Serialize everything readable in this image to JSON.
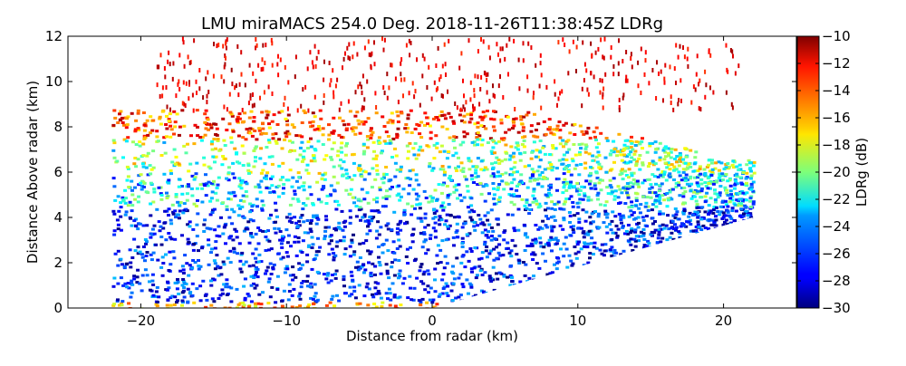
{
  "chart_data": {
    "type": "heatmap",
    "title": "LMU miraMACS 254.0 Deg. 2018-11-26T11:38:45Z  LDRg",
    "xlabel": "Distance from radar (km)",
    "ylabel": "Distance Above radar  (km)",
    "colorbar_label": "LDRg (dB)",
    "xlim": [
      -25,
      25
    ],
    "ylim": [
      0,
      12
    ],
    "x_ticks": [
      -20,
      -10,
      0,
      10,
      20
    ],
    "x_tick_labels": [
      "−20",
      "−10",
      "0",
      "10",
      "20"
    ],
    "y_ticks": [
      0,
      2,
      4,
      6,
      8,
      10,
      12
    ],
    "y_tick_labels": [
      "0",
      "2",
      "4",
      "6",
      "8",
      "10",
      "12"
    ],
    "color_range": [
      -30,
      -10
    ],
    "colorbar_ticks": [
      -30,
      -28,
      -26,
      -24,
      -22,
      -20,
      -18,
      -16,
      -14,
      -12,
      -10
    ],
    "colorbar_tick_labels": [
      "−30",
      "−28",
      "−26",
      "−24",
      "−22",
      "−20",
      "−18",
      "−16",
      "−14",
      "−12",
      "−10"
    ],
    "colormap": "jet",
    "grid": false,
    "scan_sector": {
      "left_edge_km": -22,
      "right_edge_km": 22,
      "right_edge_top_km": 4,
      "right_edge_bottom_km": 0
    },
    "layers": [
      {
        "height_range_km": [
          0,
          0.3
        ],
        "ldr_db": -16
      },
      {
        "height_range_km": [
          0.3,
          4.5
        ],
        "ldr_db": -27
      },
      {
        "height_range_km": [
          4.5,
          6.0
        ],
        "ldr_db": -23
      },
      {
        "height_range_km": [
          6.0,
          7.5
        ],
        "ldr_db": -20
      },
      {
        "height_range_km": [
          7.5,
          8.8
        ],
        "ldr_db": -14
      },
      {
        "height_range_km": [
          8.8,
          12.0
        ],
        "ldr_db": -11
      }
    ]
  }
}
